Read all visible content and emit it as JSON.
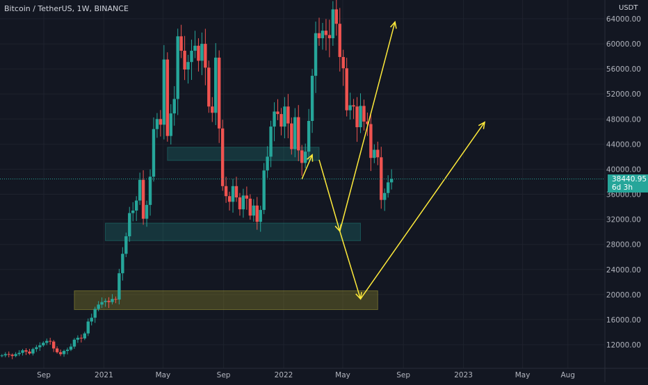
{
  "chart_data": {
    "type": "candlestick",
    "title": "Bitcoin / TetherUS, 1W, BINANCE",
    "price_unit": "USDT",
    "current_price": "38440.95",
    "countdown": "6d 3h",
    "y_ticks": [
      12000,
      16000,
      20000,
      24000,
      28000,
      32000,
      36000,
      40000,
      44000,
      48000,
      52000,
      56000,
      60000,
      64000
    ],
    "y_tick_labels": [
      "12000.00",
      "16000.00",
      "20000.00",
      "24000.00",
      "28000.00",
      "32000.00",
      "36000.00",
      "40000.00",
      "44000.00",
      "48000.00",
      "52000.00",
      "56000.00",
      "60000.00",
      "64000.00"
    ],
    "x_ticks": [
      {
        "label": "Sep",
        "date": "2020-09-01"
      },
      {
        "label": "2021",
        "date": "2021-01-01"
      },
      {
        "label": "May",
        "date": "2021-05-01"
      },
      {
        "label": "Sep",
        "date": "2021-09-01"
      },
      {
        "label": "2022",
        "date": "2022-01-01"
      },
      {
        "label": "May",
        "date": "2022-05-01"
      },
      {
        "label": "Sep",
        "date": "2022-09-01"
      },
      {
        "label": "2023",
        "date": "2023-01-01"
      },
      {
        "label": "May",
        "date": "2023-05-01"
      },
      {
        "label": "Aug",
        "date": "2023-08-01"
      }
    ],
    "closes": [
      10300,
      10500,
      10400,
      10200,
      10500,
      10700,
      11100,
      10900,
      10600,
      11300,
      11600,
      11900,
      12300,
      12600,
      12500,
      11400,
      10800,
      10500,
      11000,
      11200,
      11700,
      12800,
      13100,
      13000,
      13800,
      15700,
      16300,
      17700,
      18400,
      18800,
      19000,
      18800,
      19300,
      19200,
      23400,
      26500,
      29300,
      33000,
      33400,
      35000,
      38300,
      32100,
      34300,
      38800,
      46400,
      48000,
      47100,
      57500,
      45300,
      48900,
      51200,
      61200,
      58900,
      55900,
      57100,
      58900,
      59700,
      57300,
      60000,
      56200,
      50000,
      49000,
      57800,
      46500,
      37300,
      35700,
      34800,
      37300,
      35500,
      33600,
      35800,
      35300,
      32600,
      34200,
      31600,
      33500,
      39800,
      42000,
      46800,
      49200,
      48800,
      46800,
      50000,
      47300,
      43200,
      48300,
      43000,
      41000,
      42800,
      47700,
      54900,
      61700,
      60900,
      62100,
      61400,
      60900,
      65500,
      63200,
      57900,
      56100,
      49400,
      50200,
      50000,
      46700,
      50100,
      47600,
      47200,
      41800,
      43100,
      41900,
      35100,
      36200,
      37900,
      38440.95
    ],
    "support_resistance_zones": [
      {
        "low": 41400,
        "high": 43500,
        "from": "2021-05-10",
        "to": "2022-03-14"
      },
      {
        "low": 28600,
        "high": 31400,
        "from": "2021-01-04",
        "to": "2022-06-06"
      },
      {
        "low": 17600,
        "high": 20600,
        "from": "2020-11-02",
        "to": "2022-07-11"
      }
    ],
    "projection_path": [
      {
        "date": "2022-02-07",
        "price": 38440
      },
      {
        "date": "2022-02-28",
        "price": 42300
      },
      {
        "date": "2022-03-14",
        "price": 41500
      },
      {
        "date": "2022-04-25",
        "price": 30100
      },
      {
        "date": "2022-06-06",
        "price": 19300
      },
      {
        "date": "2023-02-13",
        "price": 47500
      }
    ],
    "alt_projection_path": [
      {
        "date": "2022-04-25",
        "price": 30100
      },
      {
        "date": "2022-08-15",
        "price": 63500
      }
    ]
  }
}
